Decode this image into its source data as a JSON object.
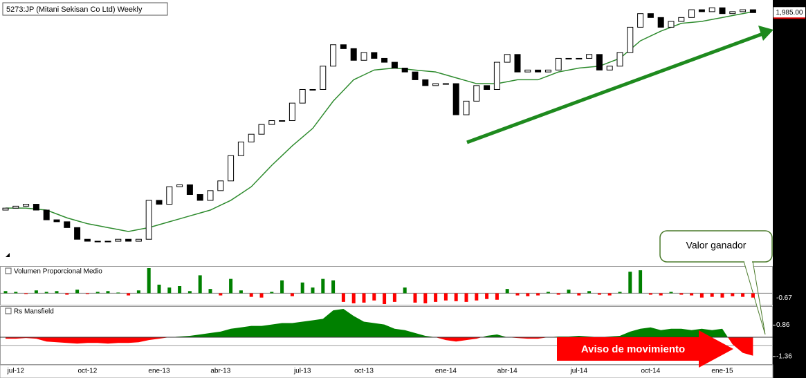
{
  "chart_data": {
    "type": "candlestick",
    "title": "5273:JP (Mitani Sekisan Co Ltd) Weekly",
    "categories": [
      null,
      "jul-12",
      null,
      null,
      null,
      null,
      null,
      null,
      "oct-12",
      null,
      null,
      null,
      null,
      null,
      null,
      "ene-13",
      null,
      null,
      null,
      null,
      null,
      "abr-13",
      null,
      null,
      null,
      null,
      null,
      null,
      null,
      "jul-13",
      null,
      null,
      null,
      null,
      null,
      "oct-13",
      null,
      null,
      null,
      null,
      null,
      null,
      null,
      "ene-14",
      null,
      null,
      null,
      null,
      null,
      "abr-14",
      null,
      null,
      null,
      null,
      null,
      null,
      "jul-14",
      null,
      null,
      null,
      null,
      null,
      null,
      "oct-14",
      null,
      null,
      null,
      null,
      null,
      null,
      "ene-15",
      null,
      null,
      null
    ],
    "open": [
      970,
      980,
      990,
      1000,
      970,
      920,
      910,
      880,
      820,
      810,
      810,
      810,
      820,
      810,
      820,
      1020,
      1000,
      1090,
      1100,
      1050,
      1020,
      1070,
      1120,
      1250,
      1320,
      1360,
      1410,
      1430,
      1430,
      1520,
      1590,
      1590,
      1710,
      1820,
      1800,
      1740,
      1780,
      1750,
      1730,
      1700,
      1680,
      1640,
      1610,
      1620,
      1620,
      1460,
      1530,
      1610,
      1590,
      1730,
      1770,
      1680,
      1690,
      1680,
      1690,
      1750,
      1750,
      1750,
      1770,
      1690,
      1710,
      1780,
      1910,
      1980,
      1960,
      1910,
      1940,
      1960,
      2000,
      1990,
      2010,
      1980,
      1990,
      2000
    ],
    "close": [
      980,
      990,
      1000,
      970,
      920,
      910,
      880,
      820,
      810,
      810,
      810,
      820,
      810,
      820,
      1020,
      1000,
      1090,
      1100,
      1050,
      1020,
      1070,
      1120,
      1250,
      1320,
      1360,
      1410,
      1430,
      1430,
      1520,
      1590,
      1590,
      1710,
      1820,
      1800,
      1740,
      1780,
      1750,
      1730,
      1700,
      1680,
      1640,
      1610,
      1620,
      1620,
      1460,
      1530,
      1610,
      1590,
      1730,
      1770,
      1680,
      1690,
      1680,
      1690,
      1750,
      1750,
      1750,
      1770,
      1690,
      1710,
      1780,
      1910,
      1980,
      1960,
      1910,
      1940,
      1960,
      2000,
      1990,
      2010,
      1980,
      1990,
      2000,
      1985
    ],
    "ma": {
      "color": "#2e8b2e",
      "values": [
        980,
        980,
        980,
        975,
        970,
        950,
        930,
        915,
        900,
        890,
        880,
        870,
        860,
        870,
        880,
        895,
        910,
        925,
        940,
        955,
        970,
        995,
        1020,
        1055,
        1090,
        1145,
        1200,
        1250,
        1300,
        1345,
        1390,
        1460,
        1530,
        1585,
        1640,
        1665,
        1690,
        1695,
        1700,
        1695,
        1690,
        1685,
        1680,
        1665,
        1650,
        1635,
        1620,
        1620,
        1620,
        1630,
        1640,
        1640,
        1640,
        1660,
        1680,
        1690,
        1700,
        1705,
        1710,
        1730,
        1750,
        1795,
        1840,
        1865,
        1890,
        1910,
        1930,
        1935,
        1940,
        1950,
        1960,
        1970,
        1980,
        1990
      ]
    },
    "ylim": [
      700,
      2050
    ],
    "last_price": {
      "value": 1985,
      "label": "1,985.00"
    },
    "volume": {
      "name": "Volumen Proporcional Medio",
      "up_color": "#008000",
      "down_color": "#ff0000",
      "ylim": [
        -1.5,
        3.5
      ],
      "yticks": [
        -0.67
      ],
      "values": [
        0.3,
        0.2,
        -0.1,
        0.4,
        0.2,
        0.3,
        -0.2,
        0.5,
        -0.1,
        0.2,
        0.3,
        0.1,
        -0.3,
        0.4,
        3.5,
        1.2,
        0.8,
        1.0,
        0.3,
        2.5,
        0.6,
        -0.3,
        2.0,
        0.4,
        -0.5,
        -0.6,
        0.2,
        1.8,
        -0.4,
        1.5,
        0.8,
        2.0,
        1.8,
        -1.2,
        -1.4,
        -1.3,
        -1.0,
        -1.5,
        -1.2,
        0.8,
        -1.3,
        -1.4,
        -1.2,
        -1.0,
        -1.1,
        -1.2,
        -1.0,
        -0.8,
        -0.9,
        0.6,
        -0.3,
        -0.4,
        -0.3,
        0.2,
        -0.2,
        0.5,
        -0.3,
        0.3,
        -0.2,
        -0.3,
        0.2,
        3.0,
        3.2,
        -0.2,
        -0.3,
        0.2,
        -0.2,
        -0.3,
        -0.6,
        -0.5,
        -0.6,
        -0.4,
        -0.5,
        -0.6
      ]
    },
    "rs": {
      "name": "Rs Mansfield",
      "up_color": "#008000",
      "down_color": "#ff0000",
      "ylim": [
        -1.9,
        2.1
      ],
      "yticks": [
        0.86,
        -1.36
      ],
      "values": [
        -0.1,
        -0.1,
        -0.05,
        -0.1,
        -0.3,
        -0.35,
        -0.4,
        -0.45,
        -0.4,
        -0.4,
        -0.45,
        -0.4,
        -0.4,
        -0.35,
        -0.2,
        -0.1,
        0,
        0.05,
        0.1,
        0.2,
        0.3,
        0.4,
        0.6,
        0.7,
        0.8,
        0.8,
        0.9,
        1.0,
        1.0,
        1.1,
        1.2,
        1.3,
        1.9,
        2.0,
        1.5,
        1.1,
        1.0,
        0.9,
        0.6,
        0.5,
        0.3,
        0.1,
        0,
        -0.2,
        -0.3,
        -0.2,
        -0.1,
        0.1,
        0.2,
        0,
        -0.05,
        -0.1,
        -0.1,
        0,
        0.05,
        0.05,
        0.1,
        0.05,
        0,
        0.05,
        0.1,
        0.4,
        0.6,
        0.7,
        0.5,
        0.6,
        0.6,
        0.5,
        0.6,
        0.5,
        0.6,
        -0.5,
        -1.1,
        -1.3
      ]
    },
    "annotations": {
      "callout": "Valor ganador",
      "arrow_label": "Aviso de movimiento"
    }
  }
}
